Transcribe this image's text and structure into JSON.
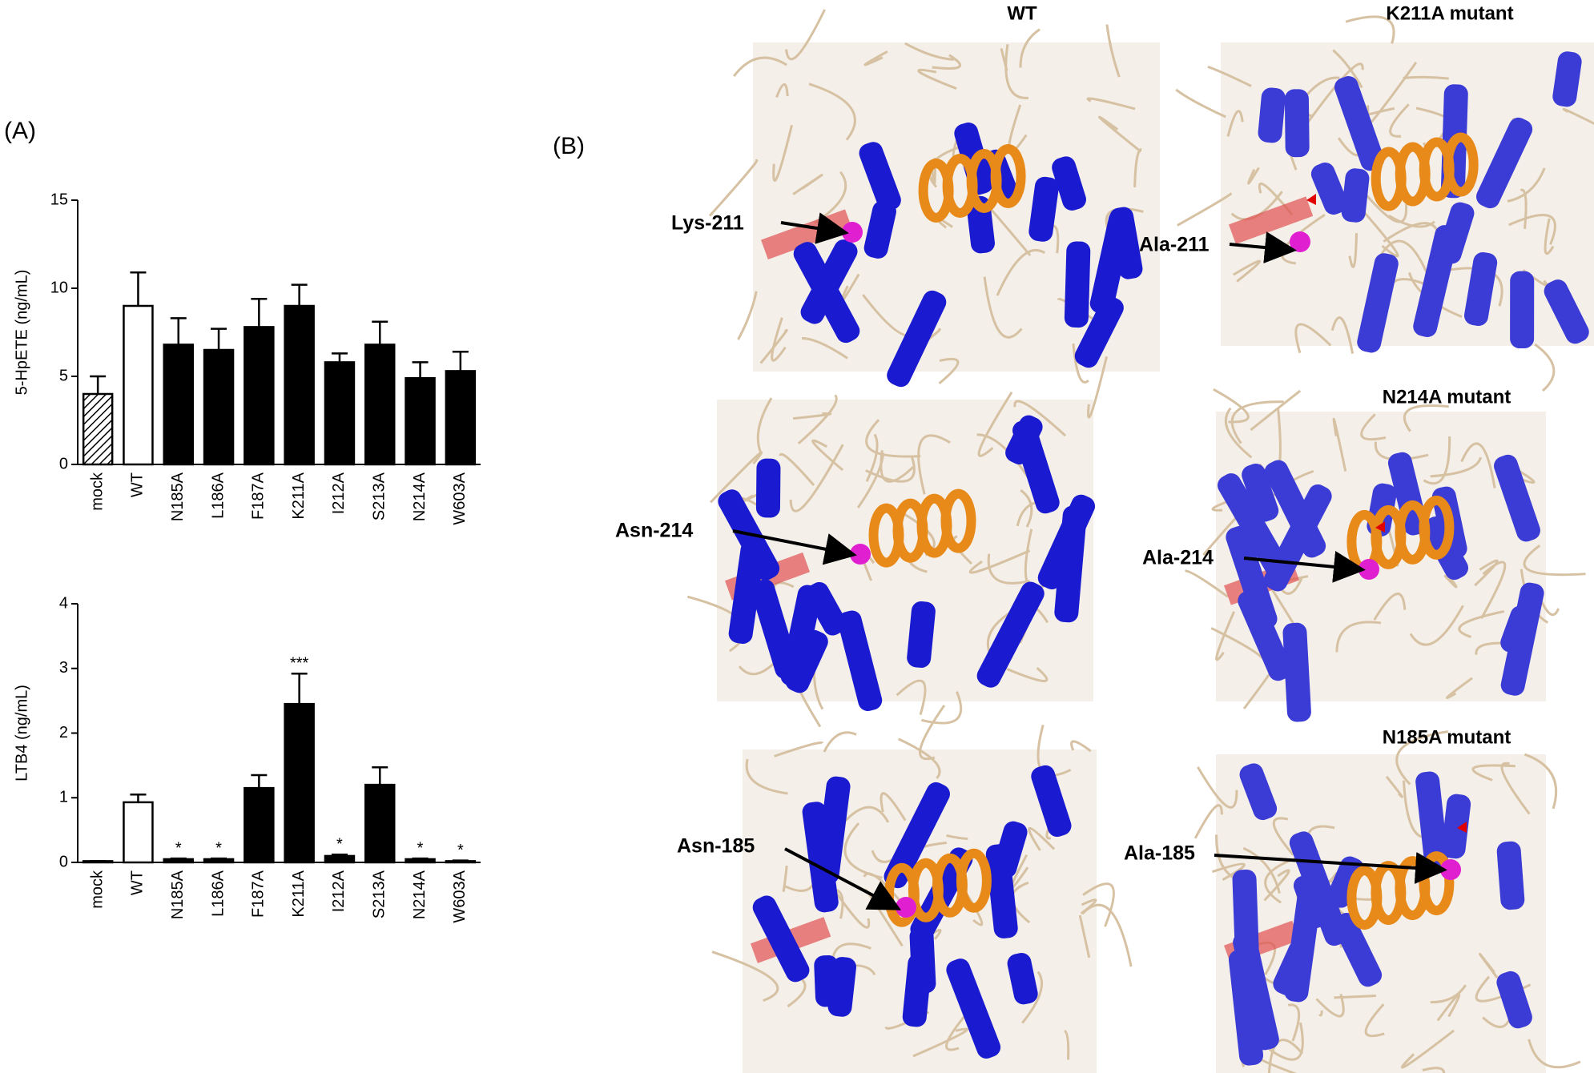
{
  "chart_data": [
    {
      "type": "bar",
      "ylabel": "5-HpETE (ng/mL)",
      "categories": [
        "mock",
        "WT",
        "N185A",
        "L186A",
        "F187A",
        "K211A",
        "I212A",
        "S213A",
        "N214A",
        "W603A"
      ],
      "values": [
        4.0,
        9.0,
        6.8,
        6.5,
        7.8,
        9.0,
        5.8,
        6.8,
        4.9,
        5.3
      ],
      "errors": [
        1.0,
        1.9,
        1.5,
        1.2,
        1.6,
        1.2,
        0.5,
        1.3,
        0.9,
        1.1
      ],
      "colors": [
        "#ffffff",
        "#ffffff",
        "#000000",
        "#000000",
        "#000000",
        "#000000",
        "#000000",
        "#000000",
        "#000000",
        "#000000"
      ],
      "hatched": [
        true,
        false,
        false,
        false,
        false,
        false,
        false,
        false,
        false,
        false
      ],
      "ylim": [
        0,
        15
      ],
      "yticks": [
        0,
        5,
        10,
        15
      ]
    },
    {
      "type": "bar",
      "ylabel": "LTB4 (ng/mL)",
      "categories": [
        "mock",
        "WT",
        "N185A",
        "L186A",
        "F187A",
        "K211A",
        "I212A",
        "S213A",
        "N214A",
        "W603A"
      ],
      "values": [
        0.02,
        0.93,
        0.05,
        0.05,
        1.15,
        2.45,
        0.1,
        1.2,
        0.05,
        0.02
      ],
      "errors": [
        0,
        0.12,
        0.01,
        0.01,
        0.2,
        0.47,
        0.02,
        0.27,
        0.01,
        0.01
      ],
      "colors": [
        "#ffffff",
        "#ffffff",
        "#000000",
        "#000000",
        "#000000",
        "#000000",
        "#000000",
        "#000000",
        "#000000",
        "#000000"
      ],
      "hatched": [
        true,
        false,
        false,
        false,
        false,
        false,
        false,
        false,
        false,
        false
      ],
      "annotations": [
        null,
        null,
        "*",
        "*",
        null,
        "***",
        "*",
        null,
        "*",
        "*"
      ],
      "ylim": [
        0,
        4
      ],
      "yticks": [
        0,
        1,
        2,
        3,
        4
      ]
    }
  ],
  "panel_labels": [
    "(A)",
    "(B)"
  ],
  "structures": {
    "headers": [
      "WT",
      "K211A mutant",
      "N214A mutant",
      "N185A mutant"
    ],
    "residues": [
      "Lys-211",
      "Ala-211",
      "Asn-214",
      "Ala-214",
      "Asn-185",
      "Ala-185"
    ]
  }
}
